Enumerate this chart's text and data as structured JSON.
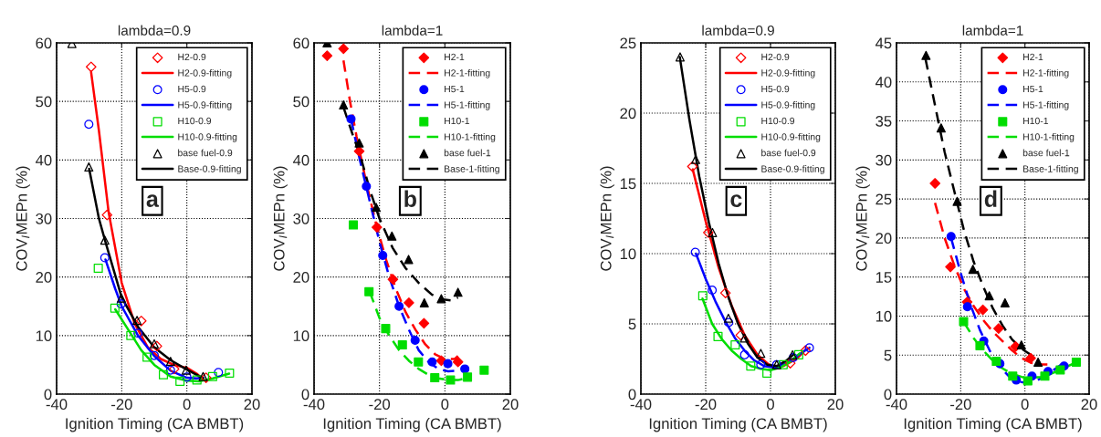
{
  "chart_data": [
    {
      "type": "scatter",
      "title": "lambda=0.9",
      "xlabel": "Ignition Timing (CA BMBT)",
      "ylabel": "COV$_{I}$MEPn (%)",
      "annotations": [
        "a"
      ],
      "xlim": [
        -40,
        20
      ],
      "xticks": [
        -40,
        -20,
        0,
        20
      ],
      "ylim": [
        0,
        60
      ],
      "yticks": [
        0,
        10,
        20,
        30,
        40,
        50,
        60
      ],
      "grid": true,
      "legend": "top right",
      "series": [
        {
          "name": "H2-0.9",
          "marker": "diamond",
          "color": "#ff0000",
          "x": [
            -29.4,
            -24.5,
            -14.0,
            -9.2,
            -3.9,
            5.9
          ],
          "values": [
            55.9,
            30.6,
            12.5,
            8.2,
            4.3,
            2.8
          ]
        },
        {
          "name": "H2-0.9-fitting",
          "type": "line",
          "line_style": "solid",
          "color": "#ff0000",
          "x": [
            -29.4,
            -27,
            -24,
            -20,
            -16,
            -12,
            -8,
            -4,
            0,
            3,
            5
          ],
          "values": [
            55,
            45,
            31,
            19,
            12,
            8,
            6,
            5,
            4.5,
            3.5,
            2.5
          ]
        },
        {
          "name": "H5-0.9",
          "marker": "circle",
          "color": "#0000ff",
          "x": [
            -30.1,
            -25.2,
            -20.2,
            -15.0,
            -10.0,
            -5.0,
            0,
            9.7
          ],
          "values": [
            46.1,
            23.3,
            15.4,
            10.4,
            6.6,
            4.1,
            2.9,
            3.7
          ]
        },
        {
          "name": "H5-0.9-fitting",
          "type": "line",
          "line_style": "solid",
          "color": "#0000ff",
          "x": [
            -25,
            -22,
            -20,
            -15,
            -10,
            -5,
            0,
            3,
            5
          ],
          "values": [
            23,
            18,
            15,
            10,
            6.5,
            4,
            2.8,
            2.7,
            2.8
          ]
        },
        {
          "name": "H10-0.9",
          "marker": "square",
          "color": "#00dd00",
          "x": [
            -27.2,
            -22.1,
            -17.2,
            -12.2,
            -7.2,
            -2.1,
            3.1,
            7.9,
            13.1
          ],
          "values": [
            21.5,
            14.7,
            10.0,
            6.3,
            3.3,
            2.2,
            2.4,
            3.0,
            3.6
          ]
        },
        {
          "name": "H10-0.9-fitting",
          "type": "line",
          "line_style": "solid",
          "color": "#00dd00",
          "x": [
            -22,
            -18,
            -14,
            -10,
            -5,
            0,
            4,
            8,
            13
          ],
          "values": [
            14.5,
            11,
            7.5,
            5,
            3,
            2.3,
            2.2,
            2.7,
            3.5
          ]
        },
        {
          "name": "base fuel-0.9",
          "marker": "triangle",
          "color": "#000000",
          "x": [
            -35.3,
            -30.1,
            -25.2,
            -20.1,
            -15.3,
            -10.0,
            -5.0,
            -0.2,
            5.0
          ],
          "values": [
            59.9,
            38.8,
            26.3,
            16.4,
            12.6,
            8.6,
            5.6,
            4.1,
            3.0
          ]
        },
        {
          "name": "Base-0.9-fitting",
          "type": "line",
          "line_style": "solid",
          "color": "#000000",
          "x": [
            -30,
            -27,
            -25,
            -20,
            -15,
            -10,
            -5,
            0,
            5
          ],
          "values": [
            38.5,
            30,
            26,
            16.5,
            11.5,
            8,
            5.8,
            4.2,
            2.7
          ]
        }
      ]
    },
    {
      "type": "scatter",
      "title": "lambda=1",
      "xlabel": "Ignition Timing (CA BMBT)",
      "ylabel": "COV$_{I}$MEPn (%)",
      "annotations": [
        "b"
      ],
      "xlim": [
        -40,
        20
      ],
      "xticks": [
        -40,
        -20,
        0,
        20
      ],
      "ylim": [
        0,
        60
      ],
      "yticks": [
        0,
        10,
        20,
        30,
        40,
        50,
        60
      ],
      "grid": true,
      "legend": "top right",
      "series": [
        {
          "name": "H2-1",
          "marker": "diamond",
          "color": "#ff0000",
          "x": [
            -36.0,
            -31.0,
            -26.2,
            -20.8,
            -15.9,
            -11.0,
            -6.4,
            -1.1,
            4.0
          ],
          "values": [
            57.8,
            59.0,
            41.5,
            28.5,
            19.6,
            15.6,
            12.1,
            5.7,
            5.5
          ]
        },
        {
          "name": "H2-1-fitting",
          "type": "line",
          "line_style": "dashed",
          "color": "#ff0000",
          "x": [
            -31,
            -29,
            -27,
            -24,
            -21,
            -18,
            -15,
            -12,
            -9,
            -6,
            -3,
            0,
            3,
            4
          ],
          "values": [
            57,
            50,
            44,
            36,
            29,
            23,
            18,
            14,
            11,
            8.5,
            6.8,
            6,
            6,
            6.5
          ]
        },
        {
          "name": "H5-1",
          "marker": "circle",
          "color": "#0000ff",
          "x": [
            -28.7,
            -24.0,
            -19.0,
            -14.0,
            -9.1,
            -3.9,
            0.9,
            6.1
          ],
          "values": [
            47.0,
            35.5,
            23.7,
            15.0,
            9.2,
            5.5,
            5.2,
            4.3
          ]
        },
        {
          "name": "H5-1-fitting",
          "type": "line",
          "line_style": "dashed",
          "color": "#0000ff",
          "x": [
            -28.7,
            -26,
            -23,
            -20,
            -17,
            -14,
            -11,
            -8,
            -5,
            -2,
            1,
            4,
            6
          ],
          "values": [
            47,
            40,
            33,
            26,
            20,
            15,
            11,
            7.5,
            5.5,
            4.3,
            3.9,
            4,
            4.5
          ]
        },
        {
          "name": "H10-1",
          "marker": "square",
          "color": "#00dd00",
          "x": [
            -28.0,
            -23.2,
            -18.1,
            -13.0,
            -8.1,
            -3.1,
            1.7,
            6.9,
            12.0
          ],
          "values": [
            28.9,
            17.5,
            11.2,
            8.4,
            5.5,
            2.8,
            2.4,
            2.9,
            4.1
          ]
        },
        {
          "name": "H10-1-fitting",
          "type": "line",
          "line_style": "dashed",
          "color": "#00dd00",
          "x": [
            -23,
            -20,
            -17,
            -14,
            -11,
            -8,
            -5,
            -2,
            1,
            4,
            7
          ],
          "values": [
            17.5,
            13,
            10,
            7.5,
            5.7,
            4.3,
            3.3,
            2.7,
            2.4,
            2.4,
            2.8
          ]
        },
        {
          "name": "base fuel-1",
          "marker": "triangle",
          "color": "#000000",
          "x": [
            -36.0,
            -31.0,
            -26.2,
            -21.0,
            -16.2,
            -11.1,
            -6.3,
            -1.1,
            4.0
          ],
          "values": [
            60,
            49.4,
            42.9,
            31.9,
            27,
            23,
            15.6,
            16.3,
            17.4
          ]
        },
        {
          "name": "Base-1-fitting",
          "type": "line",
          "line_style": "dashed",
          "color": "#000000",
          "x": [
            -31,
            -28,
            -26,
            -23,
            -20,
            -16,
            -12,
            -8,
            -4,
            -1,
            2,
            4
          ],
          "values": [
            49,
            44,
            41,
            35,
            30,
            25,
            21.5,
            19,
            17,
            16.2,
            16,
            16.5
          ]
        }
      ]
    },
    {
      "type": "scatter",
      "title": "lambda=0.9",
      "xlabel": "Ignition Timing (CA BMBT)",
      "ylabel": "COV$_{I}$MEPn (%)",
      "annotations": [
        "c"
      ],
      "xlim": [
        -40,
        20
      ],
      "xticks": [
        -40,
        -20,
        0,
        20
      ],
      "ylim": [
        0,
        25
      ],
      "yticks": [
        0,
        5,
        10,
        15,
        20,
        25
      ],
      "grid": true,
      "legend": "top right",
      "series": [
        {
          "name": "H2-0.9",
          "marker": "diamond",
          "color": "#ff0000",
          "x": [
            -24.1,
            -19.2,
            -13.9,
            -9.2,
            6.1,
            10.8
          ],
          "values": [
            16.2,
            11.5,
            7.2,
            4.2,
            2.2,
            3.1
          ]
        },
        {
          "name": "H2-0.9-fitting",
          "type": "line",
          "line_style": "solid",
          "color": "#ff0000",
          "x": [
            -24,
            -20,
            -16,
            -12,
            -8,
            -4,
            0,
            4,
            8,
            11
          ],
          "values": [
            16,
            12.3,
            9,
            6.3,
            4.2,
            2.8,
            2.0,
            2.0,
            2.5,
            3.2
          ]
        },
        {
          "name": "H5-0.9",
          "marker": "circle",
          "color": "#0000ff",
          "x": [
            -23.2,
            -18.0,
            -12.9,
            -8.0,
            -3.0,
            1.9,
            7.0,
            12.0
          ],
          "values": [
            10.1,
            7.4,
            5.1,
            2.8,
            2.1,
            2.1,
            2.6,
            3.3
          ]
        },
        {
          "name": "H5-0.9-fitting",
          "type": "line",
          "line_style": "solid",
          "color": "#0000ff",
          "x": [
            -23,
            -20,
            -17,
            -14,
            -11,
            -8,
            -5,
            -2,
            1,
            4,
            7,
            10,
            12
          ],
          "values": [
            10,
            8.2,
            6.6,
            5.2,
            4,
            3.1,
            2.4,
            2.0,
            1.9,
            2.1,
            2.5,
            3,
            3.3
          ]
        },
        {
          "name": "H10-0.9",
          "marker": "square",
          "color": "#00dd00",
          "x": [
            -20.9,
            -16.2,
            -10.9,
            -6.1,
            -1.1,
            3.9,
            8.7
          ],
          "values": [
            7.0,
            4.1,
            3.5,
            2.0,
            1.5,
            2.1,
            2.8
          ]
        },
        {
          "name": "H10-0.9-fitting",
          "type": "line",
          "line_style": "solid",
          "color": "#00dd00",
          "x": [
            -21,
            -18,
            -15,
            -12,
            -9,
            -6,
            -3,
            0,
            3,
            6,
            9
          ],
          "values": [
            6.8,
            5,
            3.9,
            3.1,
            2.5,
            2.0,
            1.8,
            1.7,
            1.9,
            2.3,
            2.9
          ]
        },
        {
          "name": "base fuel-0.9",
          "marker": "triangle",
          "color": "#000000",
          "x": [
            -27.9,
            -23.1,
            -17.9,
            -13.0,
            -8.0,
            -3.0,
            1.9,
            6.8
          ],
          "values": [
            24.0,
            16.7,
            11.5,
            5.4,
            4.0,
            2.9,
            2.1,
            2.8
          ]
        },
        {
          "name": "Base-0.9-fitting",
          "type": "line",
          "line_style": "solid",
          "color": "#000000",
          "x": [
            -28,
            -25,
            -22,
            -19,
            -16,
            -13,
            -10,
            -7,
            -4,
            -1,
            2,
            5,
            7
          ],
          "values": [
            24,
            19.5,
            15.5,
            12.2,
            9.3,
            6.9,
            5,
            3.6,
            2.6,
            2.1,
            2.0,
            2.4,
            2.8
          ]
        }
      ]
    },
    {
      "type": "scatter",
      "title": "lambda=1",
      "xlabel": "Ignition Timing (CA BMBT)",
      "ylabel": "COV$_{I}$MEPn (%)",
      "annotations": [
        "d"
      ],
      "xlim": [
        -40,
        20
      ],
      "xticks": [
        -40,
        -20,
        0,
        20
      ],
      "ylim": [
        0,
        45
      ],
      "yticks": [
        0,
        5,
        10,
        15,
        20,
        25,
        30,
        35,
        40,
        45
      ],
      "grid": true,
      "legend": "top right",
      "series": [
        {
          "name": "H2-1",
          "marker": "diamond",
          "color": "#ff0000",
          "x": [
            -28.0,
            -23.2,
            -18.0,
            -13.1,
            -8.2,
            -2.9,
            1.8
          ],
          "values": [
            27.0,
            16.3,
            11.8,
            10.8,
            8.4,
            6.1,
            4.6
          ]
        },
        {
          "name": "H2-1-fitting",
          "type": "line",
          "line_style": "dashed",
          "color": "#ff0000",
          "x": [
            -28,
            -25,
            -22,
            -19,
            -16,
            -13,
            -10,
            -7,
            -4,
            -1,
            2,
            5,
            7
          ],
          "values": [
            24.5,
            20,
            16.5,
            13.5,
            11.3,
            9.5,
            8,
            6.8,
            5.6,
            4.6,
            4,
            3.8,
            3.8
          ]
        },
        {
          "name": "H5-1",
          "marker": "circle",
          "color": "#0000ff",
          "x": [
            -23.0,
            -17.9,
            -12.8,
            -7.8,
            -2.7,
            2.2,
            7.2,
            12.2
          ],
          "values": [
            20.2,
            11.2,
            6.8,
            3.9,
            1.8,
            2.3,
            2.9,
            3.6
          ]
        },
        {
          "name": "H5-1-fitting",
          "type": "line",
          "line_style": "dashed",
          "color": "#0000ff",
          "x": [
            -23,
            -20,
            -17,
            -14,
            -11,
            -8,
            -5,
            -2,
            1,
            4,
            7,
            10,
            12
          ],
          "values": [
            20,
            15.5,
            11.5,
            8.2,
            5.6,
            3.6,
            2.3,
            1.6,
            1.4,
            1.8,
            2.5,
            3.4,
            4.0
          ]
        },
        {
          "name": "H10-1",
          "marker": "square",
          "color": "#00dd00",
          "x": [
            -19.1,
            -14.0,
            -8.9,
            -3.8,
            0.9,
            6.2,
            11.0,
            16.0
          ],
          "values": [
            9.3,
            6.2,
            4.2,
            2.3,
            1.7,
            2.3,
            3.1,
            4.1
          ]
        },
        {
          "name": "H10-1-fitting",
          "type": "line",
          "line_style": "dashed",
          "color": "#00dd00",
          "x": [
            -19,
            -16,
            -13,
            -10,
            -7,
            -4,
            -1,
            2,
            5,
            8,
            11,
            14,
            16
          ],
          "values": [
            9.2,
            7.2,
            5.6,
            4.3,
            3.3,
            2.6,
            2.2,
            2.1,
            2.2,
            2.6,
            3.1,
            3.7,
            4.1
          ]
        },
        {
          "name": "base fuel-1",
          "marker": "triangle",
          "color": "#000000",
          "x": [
            -30.8,
            -26.1,
            -21.1,
            -16.2,
            -11.1,
            -6.2,
            -1.1,
            4.1
          ],
          "values": [
            43.4,
            34.1,
            24.7,
            16.0,
            12.6,
            11.7,
            6.3,
            4.1
          ]
        },
        {
          "name": "Base-1-fitting",
          "type": "line",
          "line_style": "dashed",
          "color": "#000000",
          "x": [
            -31,
            -28,
            -25,
            -22,
            -19,
            -16,
            -13,
            -10,
            -7,
            -4,
            -1,
            2,
            4
          ],
          "values": [
            43,
            37,
            31,
            26,
            21,
            17,
            13.8,
            11,
            8.8,
            7,
            5.8,
            5,
            4.3
          ]
        }
      ]
    }
  ]
}
